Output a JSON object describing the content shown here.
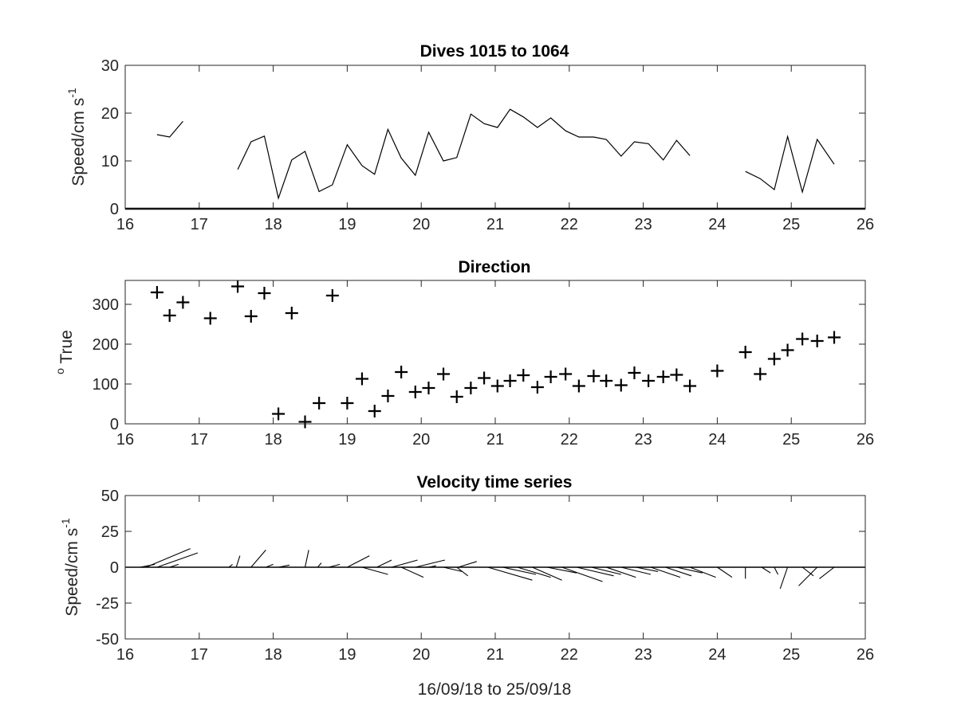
{
  "chart_data": [
    {
      "type": "line",
      "title": "Dives 1015 to 1064",
      "ylabel": "Speed/cm s",
      "ylabel_superscript": "-1",
      "xlim": [
        16,
        26
      ],
      "ylim": [
        0,
        30
      ],
      "xticks": [
        "16",
        "17",
        "18",
        "19",
        "20",
        "21",
        "22",
        "23",
        "24",
        "25",
        "26"
      ],
      "yticks": [
        "0",
        "10",
        "20",
        "30"
      ],
      "grid": false,
      "series": [
        {
          "segments": [
            [
              [
                16.43,
                15.5
              ],
              [
                16.6,
                15.0
              ],
              [
                16.78,
                18.3
              ]
            ],
            [
              [
                17.52,
                8.2
              ],
              [
                17.7,
                14.0
              ],
              [
                17.88,
                15.2
              ],
              [
                18.07,
                2.2
              ],
              [
                18.25,
                10.2
              ],
              [
                18.43,
                12.0
              ],
              [
                18.62,
                3.6
              ],
              [
                18.8,
                5.0
              ],
              [
                19.0,
                13.4
              ],
              [
                19.2,
                9.0
              ],
              [
                19.37,
                7.2
              ],
              [
                19.55,
                16.6
              ],
              [
                19.73,
                10.6
              ],
              [
                19.92,
                7.0
              ],
              [
                20.1,
                16.0
              ],
              [
                20.3,
                10.0
              ],
              [
                20.48,
                10.7
              ],
              [
                20.67,
                19.8
              ],
              [
                20.85,
                17.8
              ],
              [
                21.03,
                17.0
              ],
              [
                21.2,
                20.8
              ],
              [
                21.38,
                19.2
              ],
              [
                21.57,
                17.0
              ],
              [
                21.75,
                19.0
              ],
              [
                21.95,
                16.3
              ],
              [
                22.13,
                15.0
              ],
              [
                22.33,
                15.0
              ],
              [
                22.5,
                14.5
              ],
              [
                22.7,
                11.0
              ],
              [
                22.88,
                14.0
              ],
              [
                23.07,
                13.6
              ],
              [
                23.27,
                10.2
              ],
              [
                23.45,
                14.3
              ],
              [
                23.63,
                11.1
              ]
            ],
            [
              [
                24.38,
                7.8
              ],
              [
                24.58,
                6.3
              ],
              [
                24.77,
                4.0
              ],
              [
                24.95,
                15.1
              ],
              [
                25.15,
                3.5
              ],
              [
                25.35,
                14.5
              ],
              [
                25.58,
                9.3
              ]
            ]
          ]
        }
      ]
    },
    {
      "type": "scatter",
      "title": "Direction",
      "ylabel": "True",
      "ylabel_prefix": "o",
      "xlim": [
        16,
        26
      ],
      "ylim": [
        0,
        360
      ],
      "xticks": [
        "16",
        "17",
        "18",
        "19",
        "20",
        "21",
        "22",
        "23",
        "24",
        "25",
        "26"
      ],
      "yticks": [
        "0",
        "100",
        "200",
        "300"
      ],
      "marker": "+",
      "grid": false,
      "points": [
        [
          16.43,
          330
        ],
        [
          16.6,
          272
        ],
        [
          16.78,
          305
        ],
        [
          17.15,
          265
        ],
        [
          17.52,
          345
        ],
        [
          17.7,
          270
        ],
        [
          17.88,
          328
        ],
        [
          18.07,
          25
        ],
        [
          18.25,
          278
        ],
        [
          18.43,
          5
        ],
        [
          18.62,
          52
        ],
        [
          18.8,
          322
        ],
        [
          19.0,
          52
        ],
        [
          19.2,
          113
        ],
        [
          19.37,
          32
        ],
        [
          19.55,
          70
        ],
        [
          19.73,
          130
        ],
        [
          19.92,
          80
        ],
        [
          20.1,
          90
        ],
        [
          20.3,
          125
        ],
        [
          20.48,
          68
        ],
        [
          20.67,
          90
        ],
        [
          20.85,
          115
        ],
        [
          21.03,
          95
        ],
        [
          21.2,
          108
        ],
        [
          21.38,
          122
        ],
        [
          21.57,
          92
        ],
        [
          21.75,
          118
        ],
        [
          21.95,
          125
        ],
        [
          22.13,
          95
        ],
        [
          22.33,
          120
        ],
        [
          22.5,
          108
        ],
        [
          22.7,
          97
        ],
        [
          22.88,
          128
        ],
        [
          23.07,
          108
        ],
        [
          23.27,
          118
        ],
        [
          23.45,
          123
        ],
        [
          23.63,
          95
        ],
        [
          24.0,
          133
        ],
        [
          24.38,
          180
        ],
        [
          24.58,
          125
        ],
        [
          24.77,
          163
        ],
        [
          24.95,
          185
        ],
        [
          25.15,
          213
        ],
        [
          25.35,
          208
        ],
        [
          25.58,
          217
        ]
      ]
    },
    {
      "type": "line",
      "title": "Velocity time series",
      "ylabel": "Speed/cm s",
      "ylabel_superscript": "-1",
      "xlabel": "16/09/18 to 25/09/18",
      "xlim": [
        16,
        26
      ],
      "ylim": [
        -50,
        50
      ],
      "xticks": [
        "16",
        "17",
        "18",
        "19",
        "20",
        "21",
        "22",
        "23",
        "24",
        "25",
        "26"
      ],
      "yticks": [
        "50",
        "25",
        "0",
        "-25",
        "-50"
      ],
      "grid": false,
      "zero_line": true,
      "sticks": [
        [
          16.2,
          0.2,
          2.0
        ],
        [
          16.28,
          0.6,
          13.0
        ],
        [
          16.43,
          0.55,
          10.0
        ],
        [
          16.6,
          0.12,
          2.0
        ],
        [
          17.4,
          0.05,
          2.0
        ],
        [
          17.5,
          0.05,
          8.0
        ],
        [
          17.7,
          0.2,
          12.0
        ],
        [
          17.9,
          0.1,
          2.0
        ],
        [
          18.07,
          0.15,
          1.5
        ],
        [
          18.43,
          0.05,
          12.0
        ],
        [
          18.6,
          0.05,
          3.0
        ],
        [
          18.75,
          0.15,
          2.0
        ],
        [
          19.0,
          0.3,
          8.0
        ],
        [
          19.2,
          0.35,
          -5.0
        ],
        [
          19.4,
          0.2,
          5.0
        ],
        [
          19.6,
          0.35,
          5.0
        ],
        [
          19.73,
          0.3,
          -7.0
        ],
        [
          19.92,
          0.4,
          5.0
        ],
        [
          20.1,
          0.1,
          1.0
        ],
        [
          20.3,
          0.25,
          -3.0
        ],
        [
          20.48,
          0.15,
          -6.0
        ],
        [
          20.5,
          0.25,
          4.0
        ],
        [
          20.9,
          0.6,
          -9.0
        ],
        [
          21.1,
          0.45,
          -5.0
        ],
        [
          21.3,
          0.45,
          -7.0
        ],
        [
          21.5,
          0.4,
          -9.0
        ],
        [
          21.7,
          0.4,
          -4.0
        ],
        [
          21.9,
          0.55,
          -10.0
        ],
        [
          22.1,
          0.5,
          -6.0
        ],
        [
          22.3,
          0.4,
          -5.0
        ],
        [
          22.5,
          0.4,
          -7.0
        ],
        [
          22.7,
          0.4,
          -5.0
        ],
        [
          22.9,
          0.3,
          -3.0
        ],
        [
          23.1,
          0.4,
          -7.0
        ],
        [
          23.3,
          0.35,
          -6.0
        ],
        [
          23.45,
          0.35,
          -4.0
        ],
        [
          23.63,
          0.35,
          -7.0
        ],
        [
          24.0,
          0.2,
          -7.0
        ],
        [
          24.38,
          0.0,
          -8.0
        ],
        [
          24.6,
          0.12,
          -4.0
        ],
        [
          24.77,
          0.05,
          -5.0
        ],
        [
          24.95,
          -0.1,
          -15.0
        ],
        [
          25.15,
          0.15,
          -6.0
        ],
        [
          25.35,
          -0.25,
          -13.0
        ],
        [
          25.58,
          -0.2,
          -8.0
        ]
      ]
    }
  ]
}
